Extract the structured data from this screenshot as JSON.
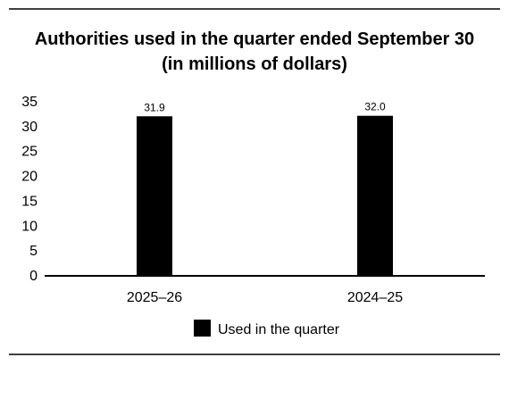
{
  "chart_data": {
    "type": "bar",
    "title_line1": "Authorities used in the quarter ended September 30",
    "title_line2": "(in millions of dollars)",
    "categories": [
      "2025–26",
      "2024–25"
    ],
    "series": [
      {
        "name": "Used in the quarter",
        "values": [
          31.9,
          32.0
        ],
        "value_labels": [
          "31.9",
          "32.0"
        ],
        "color": "#000000"
      }
    ],
    "xlabel": "",
    "ylabel": "",
    "ylim": [
      0,
      35
    ],
    "yticks": [
      "0",
      "5",
      "10",
      "15",
      "20",
      "25",
      "30",
      "35"
    ],
    "grid": false,
    "legend_position": "bottom-center"
  }
}
